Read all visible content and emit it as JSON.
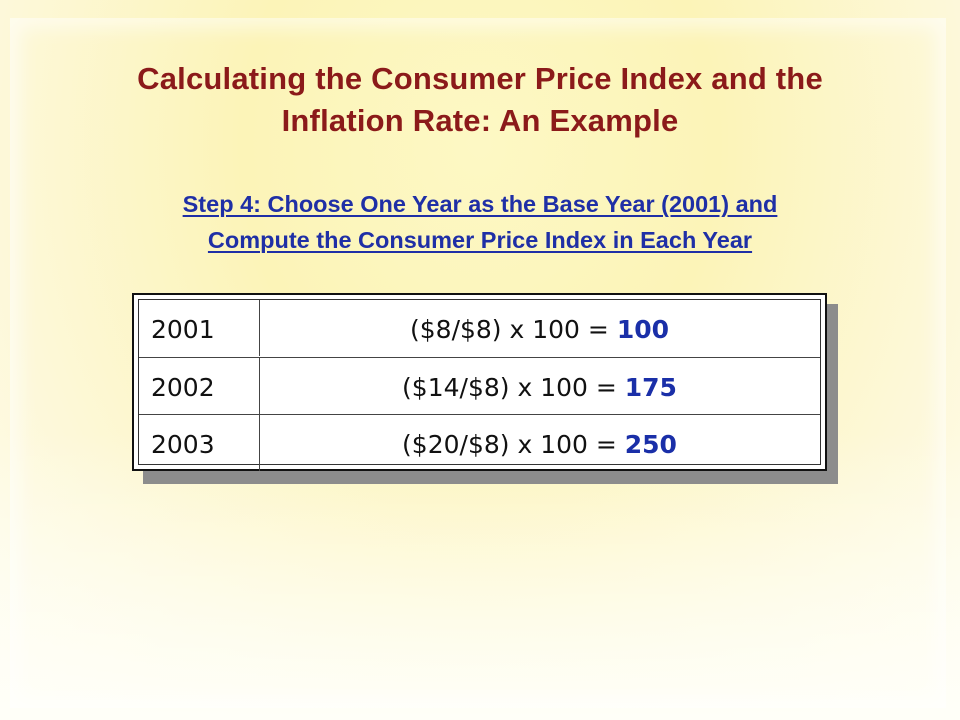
{
  "slide": {
    "title_line1": "Calculating the Consumer Price Index and the",
    "title_line2": "Inflation Rate: An Example",
    "subtitle_line1": "Step 4:  Choose One Year as the Base Year (2001) and",
    "subtitle_line2": "Compute the Consumer Price Index in Each Year"
  },
  "table": {
    "rows": [
      {
        "year": "2001",
        "formula": "($8/$8) x 100 =",
        "result": "100"
      },
      {
        "year": "2002",
        "formula": "($14/$8) x 100 =",
        "result": "175"
      },
      {
        "year": "2003",
        "formula": "($20/$8) x 100 =",
        "result": "250"
      }
    ]
  },
  "colors": {
    "title": "#8b1a1a",
    "subtitle": "#1f2fa6",
    "result": "#1a2fa8",
    "background": "#fdf7c8"
  }
}
